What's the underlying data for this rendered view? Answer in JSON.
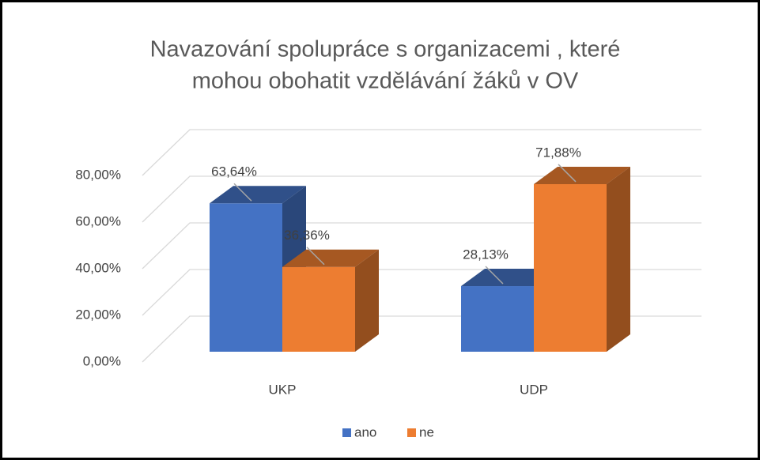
{
  "chart_data": {
    "type": "bar3d",
    "title": [
      "Navazování spolupráce s organizacemi , které",
      "mohou obohatit vzdělávání žáků v OV"
    ],
    "categories": [
      "UKP",
      "UDP"
    ],
    "series": [
      {
        "name": "ano",
        "color": "#4472c4",
        "values": [
          63.64,
          28.13
        ],
        "value_labels": [
          "63,64%",
          "28,13%"
        ]
      },
      {
        "name": "ne",
        "color": "#ed7d31",
        "values": [
          36.36,
          71.88
        ],
        "value_labels": [
          "36,36%",
          "71,88%"
        ]
      }
    ],
    "ylim": [
      0,
      80
    ],
    "yticks": [
      {
        "value": 0,
        "label": "0,00%"
      },
      {
        "value": 20,
        "label": "20,00%"
      },
      {
        "value": 40,
        "label": "40,00%"
      },
      {
        "value": 60,
        "label": "60,00%"
      },
      {
        "value": 80,
        "label": "80,00%"
      }
    ],
    "grid": true,
    "legend": "bottom"
  }
}
